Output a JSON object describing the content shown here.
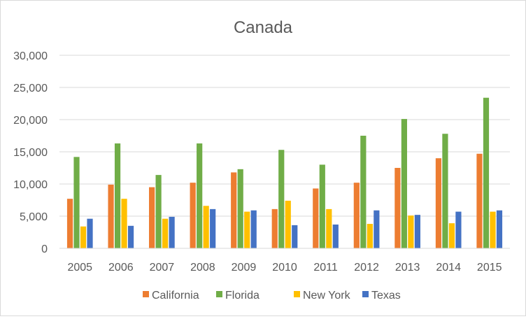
{
  "chart_data": {
    "type": "bar",
    "title": "Canada",
    "xlabel": "",
    "ylabel": "",
    "categories": [
      "2005",
      "2006",
      "2007",
      "2008",
      "2009",
      "2010",
      "2011",
      "2012",
      "2013",
      "2014",
      "2015"
    ],
    "series": [
      {
        "name": "California",
        "color": "#ED7D31",
        "values": [
          7700,
          9900,
          9500,
          10200,
          11800,
          6100,
          9300,
          10200,
          12500,
          14000,
          14700
        ]
      },
      {
        "name": "Florida",
        "color": "#70AD47",
        "values": [
          14200,
          16300,
          11400,
          16300,
          12300,
          15300,
          13000,
          17500,
          20100,
          17800,
          23400
        ]
      },
      {
        "name": "New York",
        "color": "#FFC000",
        "values": [
          3400,
          7700,
          4600,
          6600,
          5700,
          7400,
          6100,
          3800,
          5100,
          3900,
          5700
        ]
      },
      {
        "name": "Texas",
        "color": "#4472C4",
        "values": [
          4600,
          3500,
          4900,
          6100,
          5900,
          3600,
          3700,
          5900,
          5200,
          5700,
          5900
        ]
      }
    ],
    "ylim": [
      0,
      30000
    ],
    "yticks": [
      "0",
      "5,000",
      "10,000",
      "15,000",
      "20,000",
      "25,000",
      "30,000"
    ],
    "ytick_values": [
      0,
      5000,
      10000,
      15000,
      20000,
      25000,
      30000
    ],
    "grid": true,
    "legend_position": "bottom"
  }
}
